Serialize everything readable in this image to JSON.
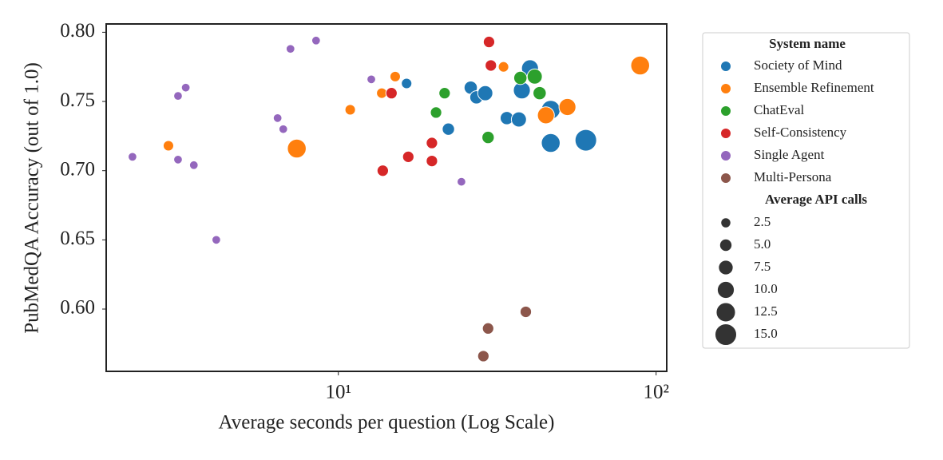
{
  "chart_data": {
    "type": "scatter",
    "xlabel": "Average seconds per question (Log Scale)",
    "ylabel": "PubMedQA Accuracy (out of 1.0)",
    "xscale": "log",
    "grid": false,
    "xlim": [
      1.86,
      108
    ],
    "ylim": [
      0.555,
      0.806
    ],
    "xticks": [
      {
        "value": 10,
        "label": "10¹"
      },
      {
        "value": 100,
        "label": "10²"
      }
    ],
    "yticks": [
      {
        "value": 0.6,
        "label": "0.60"
      },
      0.65,
      {
        "value": 0.7,
        "label": "0.70"
      },
      0.75,
      {
        "value": 0.8,
        "label": "0.80"
      }
    ],
    "legend": {
      "position": "outside right",
      "title": "System name",
      "size_title": "Average API calls",
      "size_values": [
        2.5,
        {
          "value": 5,
          "label": "5.0"
        },
        7.5,
        {
          "value": 10,
          "label": "10.0"
        },
        12.5,
        {
          "value": 15,
          "label": "15.0"
        }
      ]
    },
    "series": [
      {
        "name": "Society of Mind",
        "color": "#1f77b4",
        "x": [
          16.4,
          22.2,
          26.1,
          27.2,
          29.0,
          33.9,
          37.0,
          37.8,
          40.1,
          46.6,
          46.6,
          60.1
        ],
        "values": [
          0.763,
          0.73,
          0.76,
          0.753,
          0.756,
          0.738,
          0.737,
          0.758,
          0.774,
          0.744,
          0.72,
          0.722
        ],
        "sizes": [
          3,
          5,
          6,
          6,
          8,
          6,
          8,
          10,
          10,
          12,
          12,
          15
        ]
      },
      {
        "name": "Ensemble Refinement",
        "color": "#ff7f0e",
        "x": [
          2.92,
          7.4,
          10.9,
          15.1,
          13.7,
          33.1,
          45.0,
          52.6,
          89.1
        ],
        "values": [
          0.718,
          0.716,
          0.744,
          0.768,
          0.756,
          0.775,
          0.74,
          0.746,
          0.776
        ],
        "sizes": [
          3,
          12,
          3,
          3,
          3,
          3,
          10,
          10,
          12
        ]
      },
      {
        "name": "ChatEval",
        "color": "#2ca02c",
        "x": [
          20.3,
          21.6,
          29.6,
          37.4,
          41.5,
          43.0
        ],
        "values": [
          0.742,
          0.756,
          0.724,
          0.767,
          0.768,
          0.756
        ],
        "sizes": [
          4,
          4,
          5,
          6,
          8,
          6
        ]
      },
      {
        "name": "Self-Consistency",
        "color": "#d62728",
        "x": [
          13.8,
          14.7,
          16.6,
          19.7,
          19.7,
          29.8,
          30.2
        ],
        "values": [
          0.7,
          0.756,
          0.71,
          0.72,
          0.707,
          0.793,
          0.776
        ],
        "sizes": [
          4,
          4,
          4,
          4,
          4,
          4,
          4
        ]
      },
      {
        "name": "Single Agent",
        "color": "#9467bd",
        "x": [
          2.25,
          3.13,
          3.31,
          3.13,
          3.51,
          4.13,
          6.44,
          6.71,
          7.07,
          8.51,
          12.7,
          24.4
        ],
        "values": [
          0.71,
          0.754,
          0.76,
          0.708,
          0.704,
          0.65,
          0.738,
          0.73,
          0.788,
          0.794,
          0.766,
          0.692
        ],
        "sizes": [
          1,
          1,
          1,
          1,
          1,
          1,
          1,
          1,
          1,
          1,
          1,
          1
        ]
      },
      {
        "name": "Multi-Persona",
        "color": "#8c564b",
        "x": [
          28.6,
          29.6,
          38.9
        ],
        "values": [
          0.566,
          0.586,
          0.598
        ],
        "sizes": [
          4,
          4,
          4
        ]
      }
    ]
  }
}
